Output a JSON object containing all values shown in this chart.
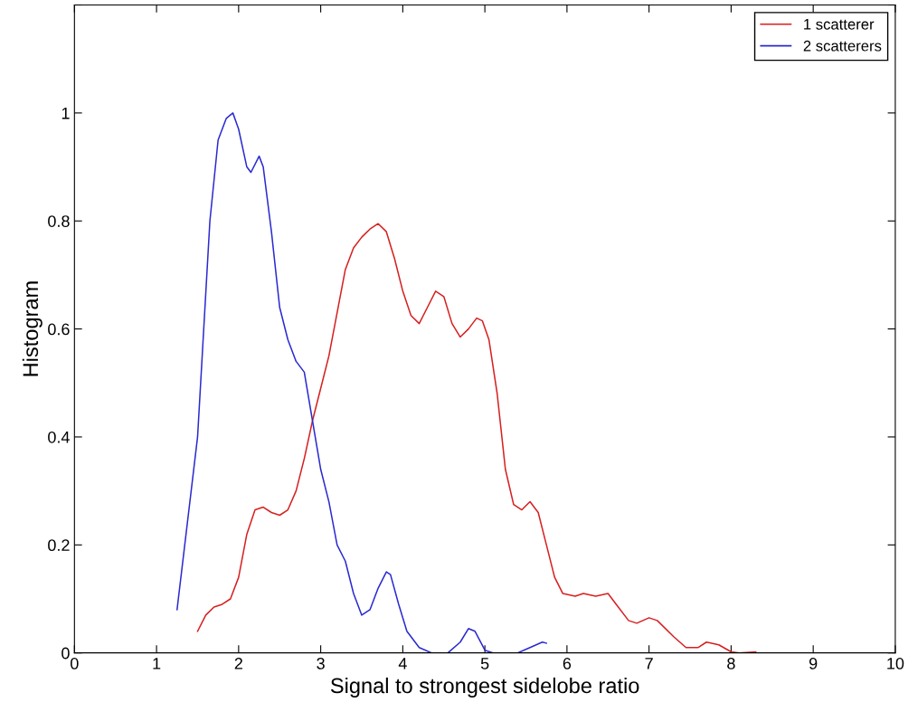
{
  "chart_data": {
    "type": "line",
    "xlabel": "Signal to strongest sidelobe ratio",
    "ylabel": "Histogram",
    "xlim": [
      0,
      10
    ],
    "xticks": [
      0,
      1,
      2,
      3,
      4,
      5,
      6,
      7,
      8,
      9,
      10
    ],
    "ylim": [
      0,
      1.2
    ],
    "yticks": [
      0,
      0.2,
      0.4,
      0.6,
      0.8,
      1,
      {
        "value": 1.2,
        "label": null
      }
    ],
    "grid": false,
    "legend": "top right",
    "marker": "none",
    "line_style": "solid",
    "series": [
      {
        "name": "1 scatterer",
        "color": "#d62020",
        "x": [
          1.5,
          1.6,
          1.7,
          1.8,
          1.9,
          2.0,
          2.1,
          2.2,
          2.3,
          2.4,
          2.5,
          2.6,
          2.7,
          2.8,
          2.9,
          3.0,
          3.1,
          3.2,
          3.3,
          3.4,
          3.5,
          3.6,
          3.7,
          3.8,
          3.9,
          4.0,
          4.1,
          4.2,
          4.3,
          4.4,
          4.5,
          4.6,
          4.7,
          4.8,
          4.9,
          4.97,
          5.05,
          5.15,
          5.25,
          5.35,
          5.45,
          5.55,
          5.65,
          5.75,
          5.85,
          5.95,
          6.1,
          6.2,
          6.35,
          6.5,
          6.6,
          6.75,
          6.85,
          7.0,
          7.1,
          7.3,
          7.45,
          7.6,
          7.7,
          7.85,
          8.0,
          8.1,
          8.3
        ],
        "values": [
          0.04,
          0.07,
          0.085,
          0.09,
          0.1,
          0.14,
          0.22,
          0.265,
          0.27,
          0.26,
          0.255,
          0.265,
          0.3,
          0.36,
          0.43,
          0.49,
          0.55,
          0.63,
          0.71,
          0.75,
          0.77,
          0.785,
          0.795,
          0.78,
          0.73,
          0.67,
          0.625,
          0.61,
          0.64,
          0.67,
          0.66,
          0.61,
          0.585,
          0.6,
          0.62,
          0.615,
          0.58,
          0.48,
          0.34,
          0.275,
          0.265,
          0.28,
          0.26,
          0.2,
          0.14,
          0.11,
          0.105,
          0.11,
          0.105,
          0.11,
          0.09,
          0.06,
          0.055,
          0.065,
          0.06,
          0.03,
          0.01,
          0.01,
          0.02,
          0.015,
          0.002,
          0.0,
          0.002
        ]
      },
      {
        "name": "2 scatterers",
        "color": "#2a2ad0",
        "x": [
          1.25,
          1.5,
          1.65,
          1.75,
          1.85,
          1.93,
          2.0,
          2.1,
          2.15,
          2.25,
          2.3,
          2.4,
          2.5,
          2.6,
          2.7,
          2.8,
          2.9,
          3.0,
          3.1,
          3.2,
          3.3,
          3.4,
          3.5,
          3.6,
          3.7,
          3.8,
          3.85,
          3.95,
          4.05,
          4.2,
          4.35,
          4.55,
          4.7,
          4.8,
          4.88,
          5.0,
          5.1,
          5.4,
          5.55,
          5.7,
          5.75
        ],
        "values": [
          0.08,
          0.4,
          0.8,
          0.95,
          0.99,
          1.0,
          0.97,
          0.9,
          0.89,
          0.92,
          0.9,
          0.78,
          0.64,
          0.58,
          0.54,
          0.52,
          0.43,
          0.34,
          0.28,
          0.2,
          0.17,
          0.11,
          0.07,
          0.08,
          0.12,
          0.15,
          0.145,
          0.09,
          0.04,
          0.01,
          0.0,
          0.0,
          0.02,
          0.045,
          0.04,
          0.005,
          0.0,
          0.0,
          0.01,
          0.02,
          0.018
        ]
      }
    ]
  }
}
